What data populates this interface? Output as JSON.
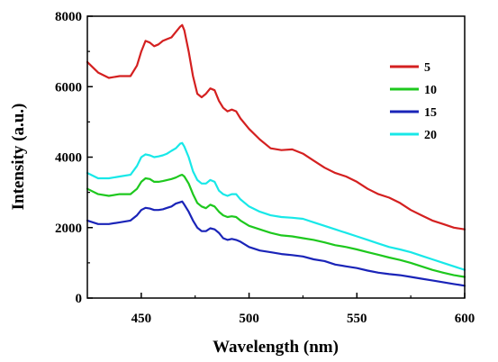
{
  "chart_data": {
    "type": "line",
    "title": "",
    "xlabel": "Wavelength (nm)",
    "ylabel": "Intensity (a.u.)",
    "xlim": [
      425,
      600
    ],
    "ylim": [
      0,
      8000
    ],
    "xticks": [
      450,
      500,
      550,
      600
    ],
    "yticks": [
      0,
      2000,
      4000,
      6000,
      8000
    ],
    "grid": false,
    "legend_position": "right",
    "series": [
      {
        "name": "5",
        "color": "#d42020",
        "x": [
          425,
          430,
          435,
          440,
          445,
          448,
          450,
          452,
          454,
          456,
          458,
          460,
          462,
          464,
          466,
          468,
          469,
          470,
          472,
          474,
          476,
          478,
          480,
          482,
          484,
          486,
          488,
          490,
          492,
          494,
          496,
          500,
          505,
          510,
          515,
          520,
          525,
          530,
          535,
          540,
          545,
          550,
          555,
          560,
          565,
          570,
          575,
          580,
          585,
          590,
          595,
          600
        ],
        "y": [
          6700,
          6400,
          6250,
          6300,
          6300,
          6600,
          7000,
          7300,
          7250,
          7150,
          7200,
          7300,
          7350,
          7400,
          7550,
          7700,
          7750,
          7600,
          7000,
          6300,
          5800,
          5700,
          5800,
          5950,
          5900,
          5600,
          5400,
          5300,
          5350,
          5300,
          5100,
          4800,
          4500,
          4250,
          4200,
          4220,
          4100,
          3900,
          3700,
          3550,
          3450,
          3300,
          3100,
          2950,
          2850,
          2700,
          2500,
          2350,
          2200,
          2100,
          2000,
          1950
        ]
      },
      {
        "name": "10",
        "color": "#1ec81e",
        "x": [
          425,
          430,
          435,
          440,
          445,
          448,
          450,
          452,
          454,
          456,
          458,
          460,
          462,
          464,
          466,
          468,
          469,
          470,
          472,
          474,
          476,
          478,
          480,
          482,
          484,
          486,
          488,
          490,
          492,
          494,
          496,
          500,
          505,
          510,
          515,
          520,
          525,
          530,
          535,
          540,
          545,
          550,
          555,
          560,
          565,
          570,
          575,
          580,
          585,
          590,
          595,
          600
        ],
        "y": [
          3100,
          2950,
          2900,
          2950,
          2950,
          3100,
          3300,
          3400,
          3380,
          3300,
          3300,
          3320,
          3350,
          3380,
          3420,
          3480,
          3500,
          3450,
          3250,
          2950,
          2700,
          2600,
          2550,
          2650,
          2600,
          2450,
          2350,
          2300,
          2320,
          2300,
          2200,
          2050,
          1950,
          1850,
          1780,
          1750,
          1700,
          1650,
          1580,
          1500,
          1450,
          1380,
          1300,
          1230,
          1150,
          1080,
          1000,
          900,
          800,
          720,
          650,
          600
        ]
      },
      {
        "name": "15",
        "color": "#1a24b8",
        "x": [
          425,
          430,
          435,
          440,
          445,
          448,
          450,
          452,
          454,
          456,
          458,
          460,
          462,
          464,
          466,
          468,
          469,
          470,
          472,
          474,
          476,
          478,
          480,
          482,
          484,
          486,
          488,
          490,
          492,
          494,
          496,
          500,
          505,
          510,
          515,
          520,
          525,
          530,
          535,
          540,
          545,
          550,
          555,
          560,
          565,
          570,
          575,
          580,
          585,
          590,
          595,
          600
        ],
        "y": [
          2200,
          2100,
          2100,
          2150,
          2200,
          2350,
          2500,
          2560,
          2540,
          2500,
          2500,
          2520,
          2560,
          2600,
          2680,
          2720,
          2740,
          2650,
          2450,
          2200,
          2000,
          1900,
          1900,
          1980,
          1950,
          1850,
          1700,
          1650,
          1680,
          1650,
          1600,
          1450,
          1350,
          1300,
          1250,
          1220,
          1180,
          1100,
          1050,
          950,
          900,
          850,
          780,
          720,
          680,
          650,
          600,
          550,
          500,
          450,
          400,
          350
        ]
      },
      {
        "name": "20",
        "color": "#18e8e8",
        "x": [
          425,
          430,
          435,
          440,
          445,
          448,
          450,
          452,
          454,
          456,
          458,
          460,
          462,
          464,
          466,
          468,
          469,
          470,
          472,
          474,
          476,
          478,
          480,
          482,
          484,
          486,
          488,
          490,
          492,
          494,
          496,
          500,
          505,
          510,
          515,
          520,
          525,
          530,
          535,
          540,
          545,
          550,
          555,
          560,
          565,
          570,
          575,
          580,
          585,
          590,
          595,
          600
        ],
        "y": [
          3550,
          3400,
          3400,
          3450,
          3500,
          3750,
          4000,
          4080,
          4050,
          4000,
          4020,
          4050,
          4100,
          4180,
          4250,
          4380,
          4400,
          4300,
          4000,
          3600,
          3350,
          3250,
          3250,
          3350,
          3300,
          3050,
          2950,
          2900,
          2950,
          2950,
          2800,
          2600,
          2450,
          2350,
          2300,
          2280,
          2250,
          2150,
          2050,
          1950,
          1850,
          1750,
          1650,
          1550,
          1450,
          1380,
          1300,
          1200,
          1100,
          1000,
          900,
          800
        ]
      }
    ]
  }
}
